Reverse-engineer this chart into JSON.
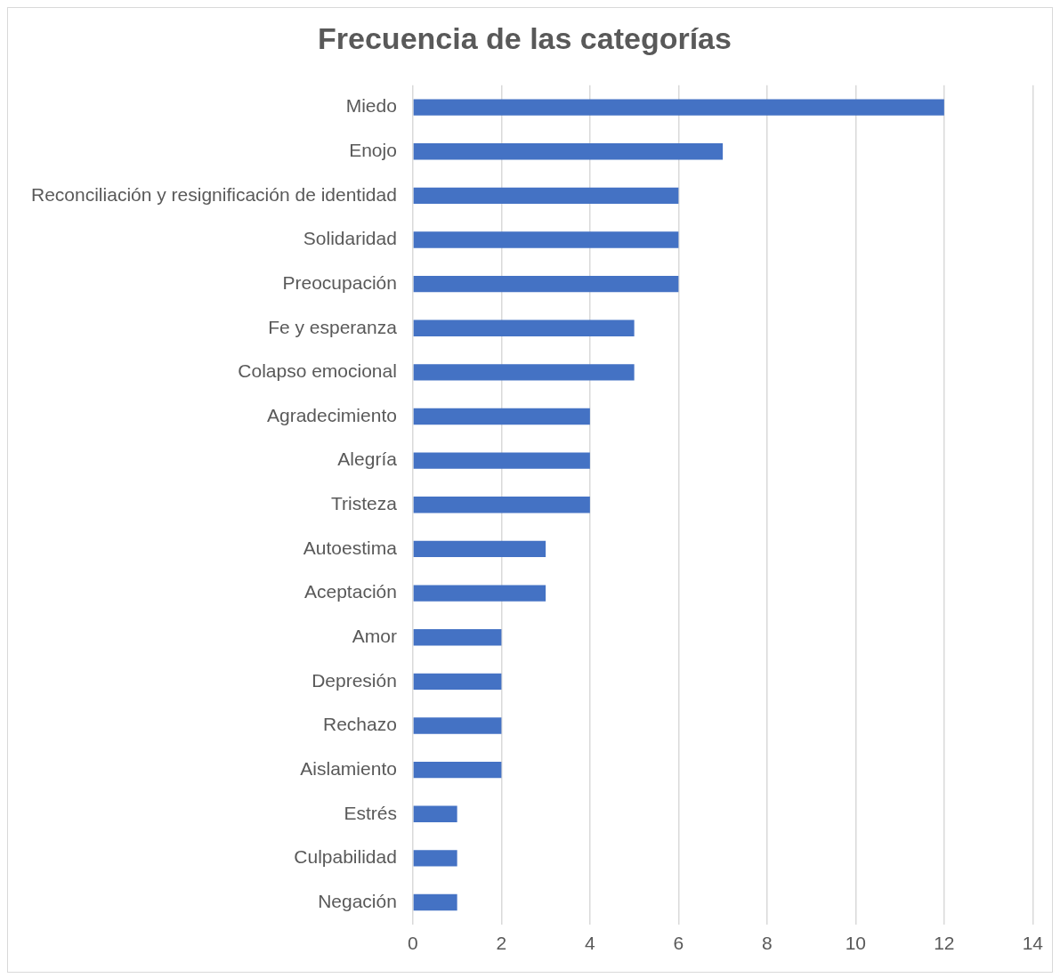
{
  "chart_data": {
    "type": "bar",
    "title": "Frecuencia de las categorías",
    "orientation": "horizontal",
    "categories": [
      "Miedo",
      "Enojo",
      "Reconciliación y resignificación de identidad",
      "Solidaridad",
      "Preocupación",
      "Fe y esperanza",
      "Colapso emocional",
      "Agradecimiento",
      "Alegría",
      "Tristeza",
      "Autoestima",
      "Aceptación",
      "Amor",
      "Depresión",
      "Rechazo",
      "Aislamiento",
      "Estrés",
      "Culpabilidad",
      "Negación"
    ],
    "values": [
      12,
      7,
      6,
      6,
      6,
      5,
      5,
      4,
      4,
      4,
      3,
      3,
      2,
      2,
      2,
      2,
      1,
      1,
      1
    ],
    "color": "#4472c4",
    "xlim": [
      0,
      14
    ],
    "xticks": [
      0,
      2,
      4,
      6,
      8,
      10,
      12,
      14
    ],
    "grid": "x",
    "legend": false
  }
}
